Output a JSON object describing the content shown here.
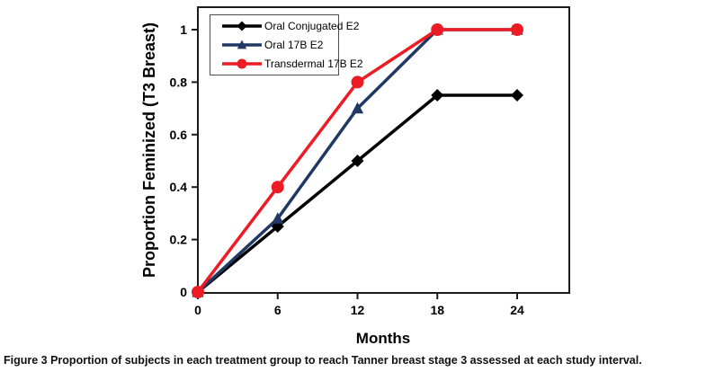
{
  "figure": {
    "caption_label": "Figure 3",
    "caption_text": " Proportion of subjects in each treatment group to reach Tanner breast stage 3 assessed at each study interval."
  },
  "chart_data": {
    "type": "line",
    "title": "",
    "xlabel": "Months",
    "ylabel": "Proportion Feminized (T3 Breast)",
    "x": [
      0,
      6,
      12,
      18,
      24
    ],
    "x_tick_labels": [
      "0",
      "6",
      "12",
      "18",
      "24"
    ],
    "y_ticks": [
      0,
      0.2,
      0.4,
      0.6,
      0.8,
      1
    ],
    "y_tick_labels": [
      "0",
      "0.2",
      "0.4",
      "0.6",
      "0.8",
      "1"
    ],
    "xlim": [
      0,
      28
    ],
    "ylim": [
      0,
      1.09
    ],
    "grid": "off",
    "legend_position": "upper-left",
    "series": [
      {
        "name": "Oral Conjugated E2",
        "color": "#000000",
        "marker": "diamond",
        "values": [
          0,
          0.25,
          0.5,
          0.75,
          0.75
        ]
      },
      {
        "name": "Oral 17B E2",
        "color": "#1F3864",
        "marker": "triangle",
        "values": [
          0,
          0.28,
          0.7,
          1,
          1
        ]
      },
      {
        "name": "Transdermal 17B E2",
        "color": "#ED1C24",
        "marker": "circle",
        "values": [
          0,
          0.4,
          0.8,
          1,
          1
        ]
      }
    ]
  }
}
